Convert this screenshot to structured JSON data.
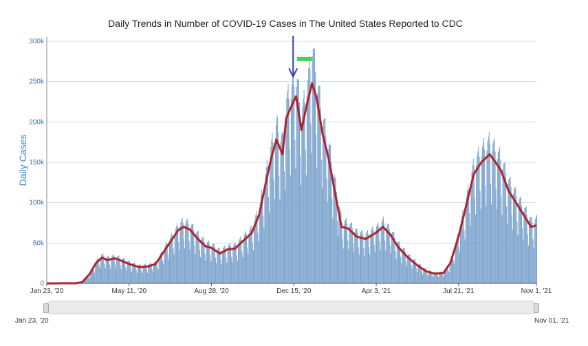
{
  "chart_data": {
    "type": "bar",
    "title": "Daily Trends in Number of COVID-19 Cases in The United States Reported to CDC",
    "ylabel": "Daily Cases",
    "ylim": [
      0,
      300000
    ],
    "yticks": [
      "0",
      "50k",
      "100k",
      "150k",
      "200k",
      "250k",
      "300k"
    ],
    "xrange": [
      "2020-01-23",
      "2021-11-01"
    ],
    "xticks": [
      {
        "date": "2020-01-23",
        "label": "Jan 23, '20"
      },
      {
        "date": "2020-05-11",
        "label": "May 11, '20"
      },
      {
        "date": "2020-08-28",
        "label": "Aug 28, '20"
      },
      {
        "date": "2020-12-15",
        "label": "Dec 15, '20"
      },
      {
        "date": "2021-04-03",
        "label": "Apr 3, '21"
      },
      {
        "date": "2021-07-21",
        "label": "Jul 21, '21"
      },
      {
        "date": "2021-11-01",
        "label": "Nov 1, '21"
      }
    ],
    "grid": true,
    "colors": {
      "bars": "#7ba3cc",
      "line": "#b0222a",
      "grid": "#cfdcea",
      "arrow": "#2f3fbf",
      "marker": "#44d15c"
    },
    "series": [
      {
        "kind": "bar",
        "points": [
          [
            "2020-01-23",
            0
          ],
          [
            "2020-03-01",
            100
          ],
          [
            "2020-03-10",
            1500
          ],
          [
            "2020-03-20",
            12000
          ],
          [
            "2020-03-28",
            25000
          ],
          [
            "2020-04-05",
            32000
          ],
          [
            "2020-04-12",
            29000
          ],
          [
            "2020-04-22",
            31000
          ],
          [
            "2020-05-01",
            28000
          ],
          [
            "2020-05-11",
            24000
          ],
          [
            "2020-05-25",
            20000
          ],
          [
            "2020-06-05",
            21000
          ],
          [
            "2020-06-15",
            24000
          ],
          [
            "2020-06-25",
            38000
          ],
          [
            "2020-07-05",
            52000
          ],
          [
            "2020-07-15",
            66000
          ],
          [
            "2020-07-22",
            70000
          ],
          [
            "2020-07-30",
            67000
          ],
          [
            "2020-08-10",
            55000
          ],
          [
            "2020-08-20",
            46000
          ],
          [
            "2020-08-28",
            44000
          ],
          [
            "2020-09-08",
            37000
          ],
          [
            "2020-09-18",
            42000
          ],
          [
            "2020-09-28",
            43000
          ],
          [
            "2020-10-08",
            52000
          ],
          [
            "2020-10-20",
            62000
          ],
          [
            "2020-10-30",
            85000
          ],
          [
            "2020-11-08",
            125000
          ],
          [
            "2020-11-15",
            155000
          ],
          [
            "2020-11-22",
            178000
          ],
          [
            "2020-11-30",
            160000
          ],
          [
            "2020-12-05",
            205000
          ],
          [
            "2020-12-12",
            220000
          ],
          [
            "2020-12-18",
            232000
          ],
          [
            "2020-12-25",
            190000
          ],
          [
            "2021-01-02",
            225000
          ],
          [
            "2021-01-08",
            268000
          ],
          [
            "2021-01-14",
            230000
          ],
          [
            "2021-01-22",
            185000
          ],
          [
            "2021-01-30",
            155000
          ],
          [
            "2021-02-08",
            110000
          ],
          [
            "2021-02-16",
            70000
          ],
          [
            "2021-02-25",
            68000
          ],
          [
            "2021-03-08",
            58000
          ],
          [
            "2021-03-20",
            55000
          ],
          [
            "2021-04-03",
            63000
          ],
          [
            "2021-04-12",
            70000
          ],
          [
            "2021-04-22",
            60000
          ],
          [
            "2021-05-02",
            45000
          ],
          [
            "2021-05-15",
            32000
          ],
          [
            "2021-05-28",
            22000
          ],
          [
            "2021-06-08",
            15000
          ],
          [
            "2021-06-20",
            12000
          ],
          [
            "2021-07-01",
            13000
          ],
          [
            "2021-07-10",
            25000
          ],
          [
            "2021-07-21",
            58000
          ],
          [
            "2021-08-01",
            100000
          ],
          [
            "2021-08-10",
            135000
          ],
          [
            "2021-08-20",
            150000
          ],
          [
            "2021-08-31",
            160000
          ],
          [
            "2021-09-08",
            150000
          ],
          [
            "2021-09-15",
            140000
          ],
          [
            "2021-09-25",
            115000
          ],
          [
            "2021-10-05",
            100000
          ],
          [
            "2021-10-15",
            85000
          ],
          [
            "2021-10-25",
            70000
          ],
          [
            "2021-11-01",
            72000
          ]
        ]
      },
      {
        "kind": "line",
        "points": [
          [
            "2020-01-23",
            0
          ],
          [
            "2020-03-01",
            100
          ],
          [
            "2020-03-10",
            1500
          ],
          [
            "2020-03-20",
            12000
          ],
          [
            "2020-03-28",
            25000
          ],
          [
            "2020-04-05",
            32000
          ],
          [
            "2020-04-12",
            29000
          ],
          [
            "2020-04-22",
            31000
          ],
          [
            "2020-05-01",
            28000
          ],
          [
            "2020-05-11",
            24000
          ],
          [
            "2020-05-25",
            20000
          ],
          [
            "2020-06-05",
            21000
          ],
          [
            "2020-06-15",
            24000
          ],
          [
            "2020-06-25",
            38000
          ],
          [
            "2020-07-05",
            52000
          ],
          [
            "2020-07-15",
            66000
          ],
          [
            "2020-07-22",
            70000
          ],
          [
            "2020-07-30",
            67000
          ],
          [
            "2020-08-10",
            55000
          ],
          [
            "2020-08-20",
            46000
          ],
          [
            "2020-08-28",
            44000
          ],
          [
            "2020-09-08",
            37000
          ],
          [
            "2020-09-18",
            42000
          ],
          [
            "2020-09-28",
            43000
          ],
          [
            "2020-10-08",
            52000
          ],
          [
            "2020-10-20",
            62000
          ],
          [
            "2020-10-30",
            85000
          ],
          [
            "2020-11-08",
            125000
          ],
          [
            "2020-11-15",
            155000
          ],
          [
            "2020-11-22",
            178000
          ],
          [
            "2020-11-30",
            160000
          ],
          [
            "2020-12-05",
            205000
          ],
          [
            "2020-12-12",
            220000
          ],
          [
            "2020-12-18",
            232000
          ],
          [
            "2020-12-25",
            190000
          ],
          [
            "2021-01-02",
            225000
          ],
          [
            "2021-01-08",
            248000
          ],
          [
            "2021-01-14",
            230000
          ],
          [
            "2021-01-22",
            185000
          ],
          [
            "2021-01-30",
            155000
          ],
          [
            "2021-02-08",
            110000
          ],
          [
            "2021-02-16",
            70000
          ],
          [
            "2021-02-25",
            68000
          ],
          [
            "2021-03-08",
            58000
          ],
          [
            "2021-03-20",
            55000
          ],
          [
            "2021-04-03",
            63000
          ],
          [
            "2021-04-12",
            70000
          ],
          [
            "2021-04-22",
            60000
          ],
          [
            "2021-05-02",
            45000
          ],
          [
            "2021-05-15",
            32000
          ],
          [
            "2021-05-28",
            22000
          ],
          [
            "2021-06-08",
            15000
          ],
          [
            "2021-06-20",
            12000
          ],
          [
            "2021-07-01",
            13000
          ],
          [
            "2021-07-10",
            25000
          ],
          [
            "2021-07-21",
            58000
          ],
          [
            "2021-08-01",
            100000
          ],
          [
            "2021-08-10",
            135000
          ],
          [
            "2021-08-20",
            150000
          ],
          [
            "2021-08-31",
            160000
          ],
          [
            "2021-09-08",
            150000
          ],
          [
            "2021-09-15",
            140000
          ],
          [
            "2021-09-25",
            115000
          ],
          [
            "2021-10-05",
            100000
          ],
          [
            "2021-10-15",
            85000
          ],
          [
            "2021-10-25",
            70000
          ],
          [
            "2021-11-01",
            72000
          ]
        ]
      }
    ],
    "annotations": [
      {
        "type": "arrow-down",
        "date": "2020-12-14",
        "value": 258000
      },
      {
        "type": "marker-bar",
        "date_start": "2020-12-19",
        "date_end": "2021-01-08",
        "value": 278000
      }
    ]
  },
  "navigator": {
    "start_label": "Jan 23, '20",
    "end_label": "Nov 01, '21"
  }
}
